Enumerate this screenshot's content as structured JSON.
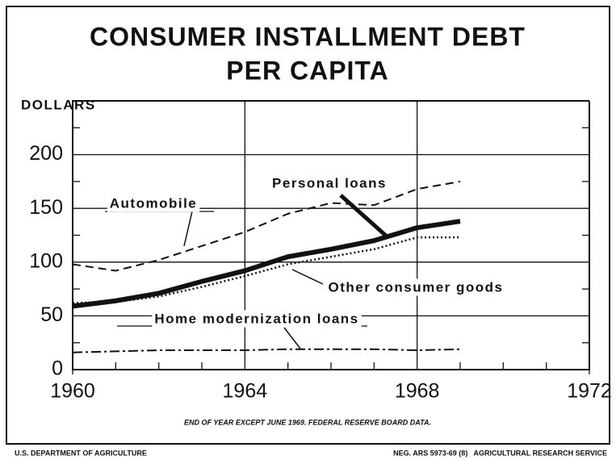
{
  "chart_data": {
    "type": "line",
    "title": [
      "CONSUMER INSTALLMENT DEBT",
      "PER CAPITA"
    ],
    "y_label": "DOLLARS",
    "x": [
      1960,
      1961,
      1962,
      1963,
      1964,
      1965,
      1966,
      1967,
      1968,
      1969
    ],
    "series": [
      {
        "name": "Automobile",
        "color": "#111111",
        "dash": "dashed",
        "values": [
          98,
          92,
          102,
          115,
          128,
          145,
          155,
          153,
          168,
          175
        ]
      },
      {
        "name": "Personal loans",
        "color": "#111111",
        "dash": "thick",
        "values": [
          59,
          64,
          71,
          82,
          92,
          105,
          112,
          120,
          132,
          138
        ]
      },
      {
        "name": "Other consumer goods",
        "color": "#111111",
        "dash": "dotted",
        "values": [
          62,
          63,
          68,
          77,
          87,
          98,
          105,
          112,
          123,
          123
        ]
      },
      {
        "name": "Home modernization loans",
        "color": "#111111",
        "dash": "dashdot",
        "values": [
          16,
          17,
          18,
          18,
          18,
          19,
          19,
          19,
          18,
          19
        ]
      }
    ],
    "xlim": [
      1960,
      1972
    ],
    "xticks": [
      1960,
      1964,
      1968,
      1972
    ],
    "ylim": [
      0,
      250
    ],
    "yticks": [
      0,
      50,
      100,
      150,
      200
    ],
    "grid": true,
    "footnote": "END OF YEAR EXCEPT JUNE 1969. FEDERAL RESERVE BOARD DATA.",
    "footer_left": "U.S. DEPARTMENT OF AGRICULTURE",
    "footer_right": "NEG. ARS 5973-69 (8)   AGRICULTURAL RESEARCH SERVICE"
  }
}
